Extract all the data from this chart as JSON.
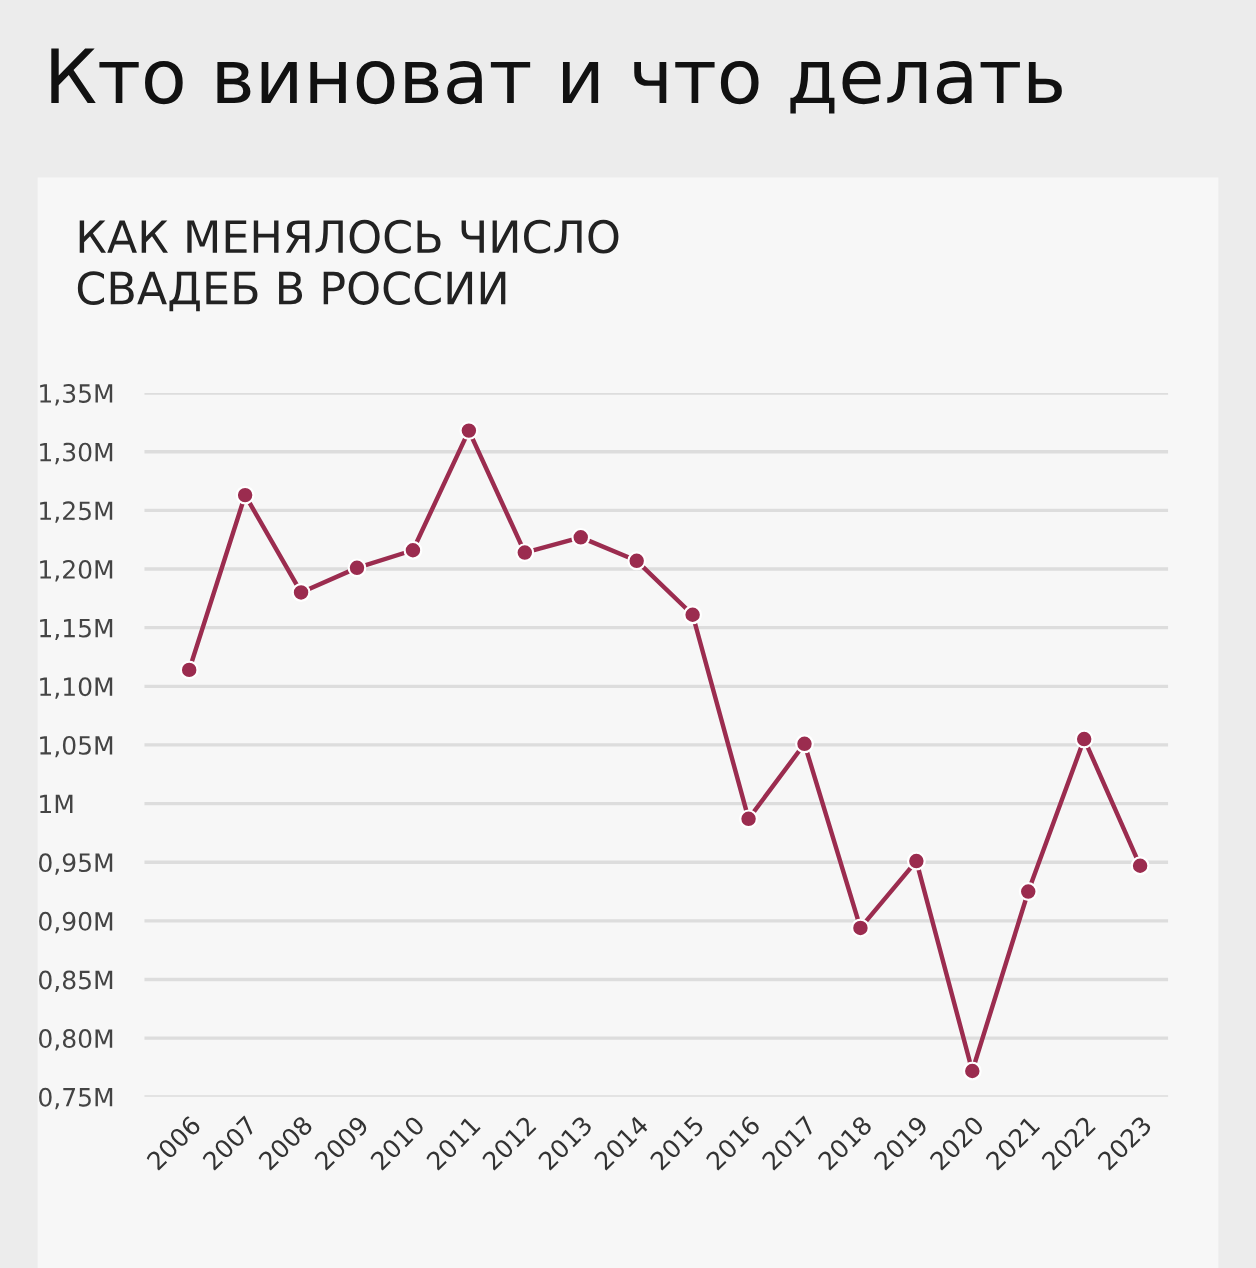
{
  "chart_data": {
    "type": "line",
    "title": "Кто виноват и что делать",
    "subtitle": "КАК МЕНЯЛОСЬ ЧИСЛО\nСВАДЕБ В РОССИИ",
    "categories": [
      "2006",
      "2007",
      "2008",
      "2009",
      "2010",
      "2011",
      "2012",
      "2013",
      "2014",
      "2015",
      "2016",
      "2017",
      "2018",
      "2019",
      "2020",
      "2021",
      "2022",
      "2023"
    ],
    "series": [
      {
        "color": "#9b2c4f",
        "values": [
          1.114,
          1.263,
          1.18,
          1.201,
          1.216,
          1.318,
          1.214,
          1.227,
          1.207,
          1.161,
          0.987,
          1.051,
          0.894,
          0.951,
          0.772,
          0.925,
          1.055,
          0.947
        ]
      }
    ],
    "ylim": [
      0.75,
      1.35
    ],
    "yticks": [
      {
        "value": 0.75,
        "label": "0,75M"
      },
      {
        "value": 0.8,
        "label": "0,80M"
      },
      {
        "value": 0.85,
        "label": "0,85M"
      },
      {
        "value": 0.9,
        "label": "0,90M"
      },
      {
        "value": 0.95,
        "label": "0,95M"
      },
      {
        "value": 1.0,
        "label": "1M"
      },
      {
        "value": 1.05,
        "label": "1,05M"
      },
      {
        "value": 1.1,
        "label": "1,10M"
      },
      {
        "value": 1.15,
        "label": "1,15M"
      },
      {
        "value": 1.2,
        "label": "1,20M"
      },
      {
        "value": 1.25,
        "label": "1,25M"
      },
      {
        "value": 1.3,
        "label": "1,30M"
      },
      {
        "value": 1.35,
        "label": "1,35M"
      }
    ],
    "grid": "y",
    "marker": "circle",
    "line_style": "solid",
    "legend": false
  }
}
